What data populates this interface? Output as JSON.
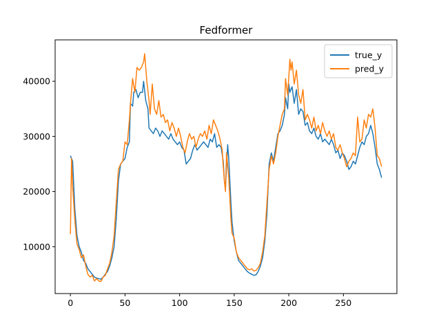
{
  "chart_data": {
    "type": "line",
    "title": "Fedformer",
    "xlabel": "",
    "ylabel": "",
    "xlim": [
      -14,
      299
    ],
    "ylim": [
      1500,
      47500
    ],
    "x_ticks": [
      0,
      50,
      100,
      150,
      200,
      250
    ],
    "y_ticks": [
      10000,
      20000,
      30000,
      40000
    ],
    "y_tick_labels": [
      "10000",
      "20000",
      "30000",
      "40000"
    ],
    "grid": false,
    "legend_position": "top-right",
    "series": [
      {
        "name": "true_y",
        "color": "#1f77b4",
        "points": [
          [
            0,
            26500
          ],
          [
            2,
            25500
          ],
          [
            4,
            17000
          ],
          [
            6,
            12000
          ],
          [
            8,
            10000
          ],
          [
            10,
            9000
          ],
          [
            12,
            7500
          ],
          [
            14,
            7000
          ],
          [
            16,
            6000
          ],
          [
            18,
            5500
          ],
          [
            20,
            5000
          ],
          [
            22,
            4500
          ],
          [
            24,
            4300
          ],
          [
            26,
            4200
          ],
          [
            28,
            4100
          ],
          [
            30,
            4500
          ],
          [
            32,
            5000
          ],
          [
            34,
            5500
          ],
          [
            36,
            6500
          ],
          [
            38,
            8000
          ],
          [
            40,
            10000
          ],
          [
            42,
            15000
          ],
          [
            44,
            22000
          ],
          [
            46,
            25000
          ],
          [
            48,
            25500
          ],
          [
            50,
            26000
          ],
          [
            52,
            28000
          ],
          [
            54,
            29000
          ],
          [
            55,
            36000
          ],
          [
            57,
            35500
          ],
          [
            58,
            38000
          ],
          [
            60,
            38500
          ],
          [
            62,
            37000
          ],
          [
            64,
            38000
          ],
          [
            66,
            38000
          ],
          [
            67,
            40000
          ],
          [
            69,
            36500
          ],
          [
            71,
            35000
          ],
          [
            72,
            31500
          ],
          [
            74,
            31000
          ],
          [
            76,
            30500
          ],
          [
            78,
            31500
          ],
          [
            80,
            31000
          ],
          [
            82,
            30000
          ],
          [
            84,
            31000
          ],
          [
            86,
            30500
          ],
          [
            88,
            30000
          ],
          [
            90,
            29500
          ],
          [
            92,
            30500
          ],
          [
            94,
            29500
          ],
          [
            96,
            29000
          ],
          [
            98,
            28500
          ],
          [
            100,
            29000
          ],
          [
            102,
            28000
          ],
          [
            104,
            27500
          ],
          [
            106,
            25000
          ],
          [
            108,
            25500
          ],
          [
            110,
            26000
          ],
          [
            112,
            27500
          ],
          [
            114,
            28500
          ],
          [
            116,
            27500
          ],
          [
            118,
            28000
          ],
          [
            120,
            28500
          ],
          [
            122,
            29000
          ],
          [
            124,
            28500
          ],
          [
            126,
            28000
          ],
          [
            128,
            29500
          ],
          [
            130,
            29000
          ],
          [
            132,
            30500
          ],
          [
            134,
            28000
          ],
          [
            136,
            28500
          ],
          [
            138,
            28000
          ],
          [
            140,
            25500
          ],
          [
            141,
            22000
          ],
          [
            142,
            20500
          ],
          [
            144,
            28500
          ],
          [
            145,
            26000
          ],
          [
            147,
            18000
          ],
          [
            148,
            14500
          ],
          [
            150,
            11000
          ],
          [
            152,
            9000
          ],
          [
            154,
            7500
          ],
          [
            156,
            7000
          ],
          [
            158,
            6500
          ],
          [
            160,
            6000
          ],
          [
            162,
            5500
          ],
          [
            164,
            5200
          ],
          [
            166,
            5000
          ],
          [
            168,
            4800
          ],
          [
            170,
            4900
          ],
          [
            172,
            5500
          ],
          [
            174,
            6500
          ],
          [
            176,
            8000
          ],
          [
            178,
            11000
          ],
          [
            180,
            16000
          ],
          [
            182,
            25000
          ],
          [
            184,
            27000
          ],
          [
            186,
            25500
          ],
          [
            188,
            28000
          ],
          [
            190,
            30500
          ],
          [
            192,
            31000
          ],
          [
            194,
            32000
          ],
          [
            196,
            34000
          ],
          [
            197,
            37000
          ],
          [
            199,
            35000
          ],
          [
            200,
            39500
          ],
          [
            201,
            38000
          ],
          [
            203,
            39000
          ],
          [
            205,
            36000
          ],
          [
            207,
            38500
          ],
          [
            209,
            34000
          ],
          [
            211,
            35000
          ],
          [
            213,
            34500
          ],
          [
            215,
            32000
          ],
          [
            217,
            32500
          ],
          [
            219,
            31000
          ],
          [
            221,
            30500
          ],
          [
            223,
            31500
          ],
          [
            225,
            30000
          ],
          [
            227,
            29500
          ],
          [
            229,
            30500
          ],
          [
            231,
            29000
          ],
          [
            233,
            29500
          ],
          [
            235,
            29000
          ],
          [
            237,
            28500
          ],
          [
            239,
            29500
          ],
          [
            241,
            28500
          ],
          [
            243,
            27000
          ],
          [
            245,
            27500
          ],
          [
            247,
            26000
          ],
          [
            249,
            27000
          ],
          [
            251,
            26500
          ],
          [
            253,
            25500
          ],
          [
            255,
            24000
          ],
          [
            257,
            24500
          ],
          [
            259,
            25500
          ],
          [
            261,
            25000
          ],
          [
            263,
            26500
          ],
          [
            265,
            28000
          ],
          [
            267,
            29000
          ],
          [
            269,
            28500
          ],
          [
            271,
            30000
          ],
          [
            273,
            30500
          ],
          [
            275,
            32000
          ],
          [
            277,
            30500
          ],
          [
            279,
            28000
          ],
          [
            281,
            25000
          ],
          [
            283,
            24000
          ],
          [
            285,
            22500
          ]
        ]
      },
      {
        "name": "pred_y",
        "color": "#ff7f0e",
        "points": [
          [
            0,
            12300
          ],
          [
            1,
            26000
          ],
          [
            2,
            21000
          ],
          [
            4,
            15000
          ],
          [
            6,
            10500
          ],
          [
            8,
            9500
          ],
          [
            10,
            8000
          ],
          [
            12,
            8500
          ],
          [
            14,
            6500
          ],
          [
            16,
            5000
          ],
          [
            18,
            4500
          ],
          [
            20,
            4800
          ],
          [
            22,
            3800
          ],
          [
            24,
            4200
          ],
          [
            26,
            3800
          ],
          [
            28,
            3700
          ],
          [
            30,
            4500
          ],
          [
            32,
            4800
          ],
          [
            34,
            6000
          ],
          [
            36,
            7000
          ],
          [
            38,
            9000
          ],
          [
            40,
            12000
          ],
          [
            42,
            18000
          ],
          [
            44,
            24000
          ],
          [
            46,
            25000
          ],
          [
            48,
            25500
          ],
          [
            50,
            29000
          ],
          [
            52,
            28500
          ],
          [
            54,
            33000
          ],
          [
            55,
            36000
          ],
          [
            57,
            40500
          ],
          [
            59,
            38000
          ],
          [
            61,
            42500
          ],
          [
            63,
            42000
          ],
          [
            65,
            42500
          ],
          [
            67,
            43500
          ],
          [
            68,
            45000
          ],
          [
            70,
            40000
          ],
          [
            72,
            36500
          ],
          [
            73,
            34000
          ],
          [
            75,
            39500
          ],
          [
            77,
            35000
          ],
          [
            79,
            34000
          ],
          [
            81,
            36500
          ],
          [
            83,
            33500
          ],
          [
            85,
            34000
          ],
          [
            87,
            32500
          ],
          [
            89,
            33000
          ],
          [
            91,
            31000
          ],
          [
            93,
            32500
          ],
          [
            95,
            31500
          ],
          [
            97,
            30000
          ],
          [
            99,
            31500
          ],
          [
            101,
            30000
          ],
          [
            103,
            28000
          ],
          [
            105,
            27000
          ],
          [
            107,
            29000
          ],
          [
            109,
            30500
          ],
          [
            111,
            29500
          ],
          [
            113,
            30000
          ],
          [
            115,
            28000
          ],
          [
            117,
            29500
          ],
          [
            119,
            30500
          ],
          [
            121,
            30000
          ],
          [
            123,
            31000
          ],
          [
            125,
            29500
          ],
          [
            127,
            32000
          ],
          [
            129,
            30500
          ],
          [
            131,
            33000
          ],
          [
            133,
            32000
          ],
          [
            135,
            31000
          ],
          [
            137,
            29500
          ],
          [
            139,
            27500
          ],
          [
            140,
            24500
          ],
          [
            141,
            22000
          ],
          [
            142,
            20000
          ],
          [
            143,
            27000
          ],
          [
            145,
            22500
          ],
          [
            147,
            15000
          ],
          [
            148,
            12500
          ],
          [
            150,
            11500
          ],
          [
            152,
            9000
          ],
          [
            154,
            8000
          ],
          [
            156,
            7500
          ],
          [
            158,
            7000
          ],
          [
            160,
            6500
          ],
          [
            162,
            6000
          ],
          [
            164,
            5800
          ],
          [
            166,
            6000
          ],
          [
            168,
            5600
          ],
          [
            170,
            5700
          ],
          [
            172,
            6200
          ],
          [
            174,
            7000
          ],
          [
            176,
            9000
          ],
          [
            178,
            12000
          ],
          [
            180,
            18000
          ],
          [
            182,
            24000
          ],
          [
            184,
            26500
          ],
          [
            186,
            25000
          ],
          [
            188,
            27000
          ],
          [
            190,
            30000
          ],
          [
            192,
            32000
          ],
          [
            194,
            34000
          ],
          [
            196,
            35000
          ],
          [
            197,
            40500
          ],
          [
            199,
            37500
          ],
          [
            201,
            44000
          ],
          [
            202,
            42000
          ],
          [
            203,
            43500
          ],
          [
            205,
            39500
          ],
          [
            207,
            42000
          ],
          [
            209,
            37500
          ],
          [
            211,
            36000
          ],
          [
            213,
            38500
          ],
          [
            215,
            33000
          ],
          [
            217,
            34000
          ],
          [
            219,
            33000
          ],
          [
            221,
            31500
          ],
          [
            223,
            33500
          ],
          [
            225,
            31000
          ],
          [
            227,
            32000
          ],
          [
            229,
            30500
          ],
          [
            231,
            32500
          ],
          [
            233,
            31000
          ],
          [
            235,
            30000
          ],
          [
            237,
            31000
          ],
          [
            239,
            29500
          ],
          [
            241,
            30500
          ],
          [
            243,
            28000
          ],
          [
            245,
            27500
          ],
          [
            247,
            28500
          ],
          [
            249,
            27000
          ],
          [
            251,
            26000
          ],
          [
            253,
            24500
          ],
          [
            255,
            25500
          ],
          [
            257,
            26000
          ],
          [
            259,
            27000
          ],
          [
            261,
            26500
          ],
          [
            263,
            33500
          ],
          [
            265,
            29000
          ],
          [
            267,
            29500
          ],
          [
            269,
            33000
          ],
          [
            271,
            31500
          ],
          [
            273,
            34000
          ],
          [
            275,
            33500
          ],
          [
            277,
            35000
          ],
          [
            279,
            31500
          ],
          [
            281,
            26500
          ],
          [
            283,
            26000
          ],
          [
            285,
            24500
          ]
        ]
      }
    ]
  }
}
